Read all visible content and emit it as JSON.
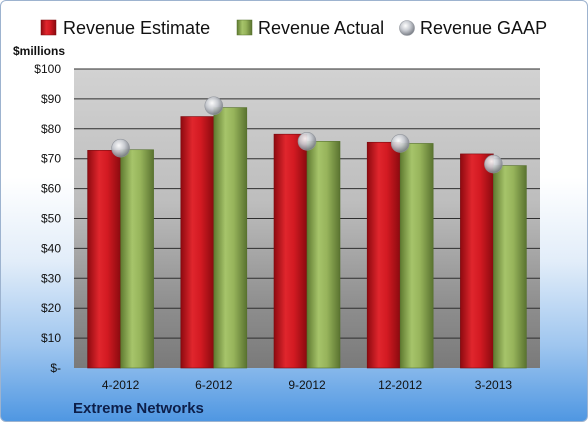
{
  "chart_data": {
    "type": "bar",
    "ylabel": "$millions",
    "footer": "Extreme Networks",
    "categories": [
      "4-2012",
      "6-2012",
      "9-2012",
      "12-2012",
      "3-2013"
    ],
    "yticks": [
      "$-",
      "$10",
      "$20",
      "$30",
      "$40",
      "$50",
      "$60",
      "$70",
      "$80",
      "$90",
      "$100"
    ],
    "ylim": [
      0,
      100
    ],
    "grid": true,
    "legend_position": "top",
    "series": [
      {
        "name": "Revenue Estimate",
        "kind": "bar",
        "color": "#c0141c",
        "values": [
          72.8,
          84.1,
          78.2,
          75.5,
          71.6
        ]
      },
      {
        "name": "Revenue Actual",
        "kind": "bar",
        "color": "#8aa752",
        "values": [
          73.0,
          87.1,
          75.8,
          75.1,
          67.7
        ]
      },
      {
        "name": "Revenue GAAP",
        "kind": "marker",
        "color": "#b8bcc4",
        "values": [
          73.5,
          87.7,
          75.8,
          75.1,
          68.2
        ]
      }
    ]
  }
}
